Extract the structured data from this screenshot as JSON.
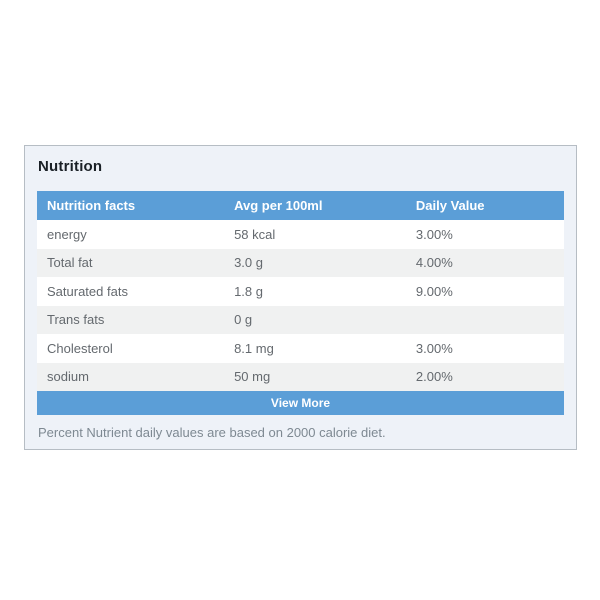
{
  "card": {
    "title": "Nutrition",
    "background_color": "#eef2f8",
    "border_color": "#b6bdc4"
  },
  "table": {
    "accent_color": "#5b9ed7",
    "stripe_color": "#f0f1f1",
    "headers": {
      "facts": "Nutrition facts",
      "avg": "Avg per 100ml",
      "daily": "Daily Value"
    },
    "rows": [
      {
        "name": "energy",
        "avg": "58 kcal",
        "daily": "3.00%"
      },
      {
        "name": "Total fat",
        "avg": "3.0 g",
        "daily": "4.00%"
      },
      {
        "name": "Saturated fats",
        "avg": "1.8 g",
        "daily": "9.00%"
      },
      {
        "name": "Trans fats",
        "avg": "0 g",
        "daily": ""
      },
      {
        "name": "Cholesterol",
        "avg": "8.1 mg",
        "daily": "3.00%"
      },
      {
        "name": "sodium",
        "avg": "50 mg",
        "daily": "2.00%"
      }
    ],
    "view_more_label": "View More"
  },
  "footer": {
    "note": "Percent Nutrient daily values are based on 2000 calorie diet."
  }
}
